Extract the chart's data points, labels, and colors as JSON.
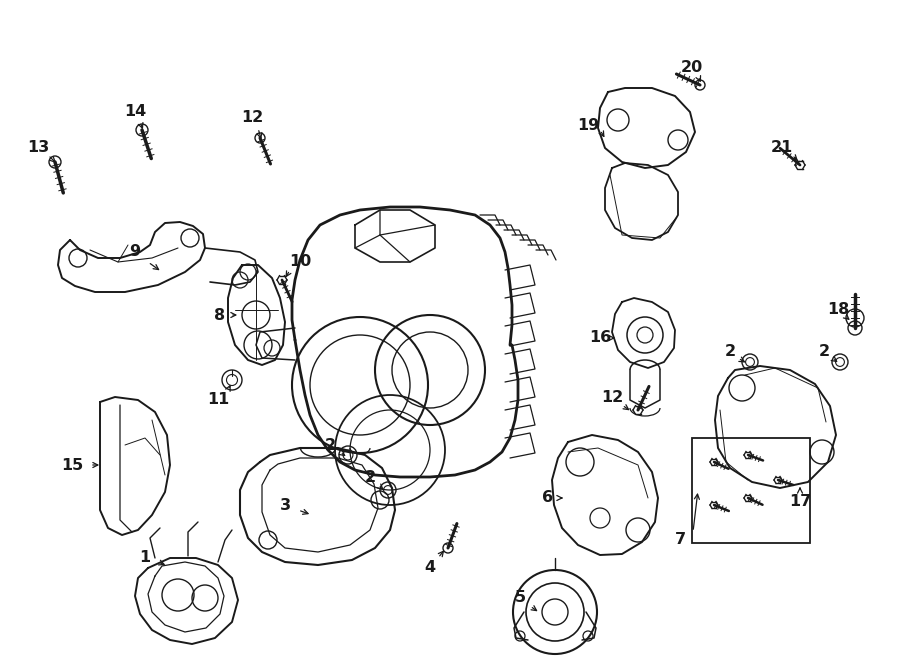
{
  "bg_color": "#ffffff",
  "line_color": "#1a1a1a",
  "fig_width": 9.0,
  "fig_height": 6.61,
  "dpi": 100,
  "label_fontsize": 11.5
}
